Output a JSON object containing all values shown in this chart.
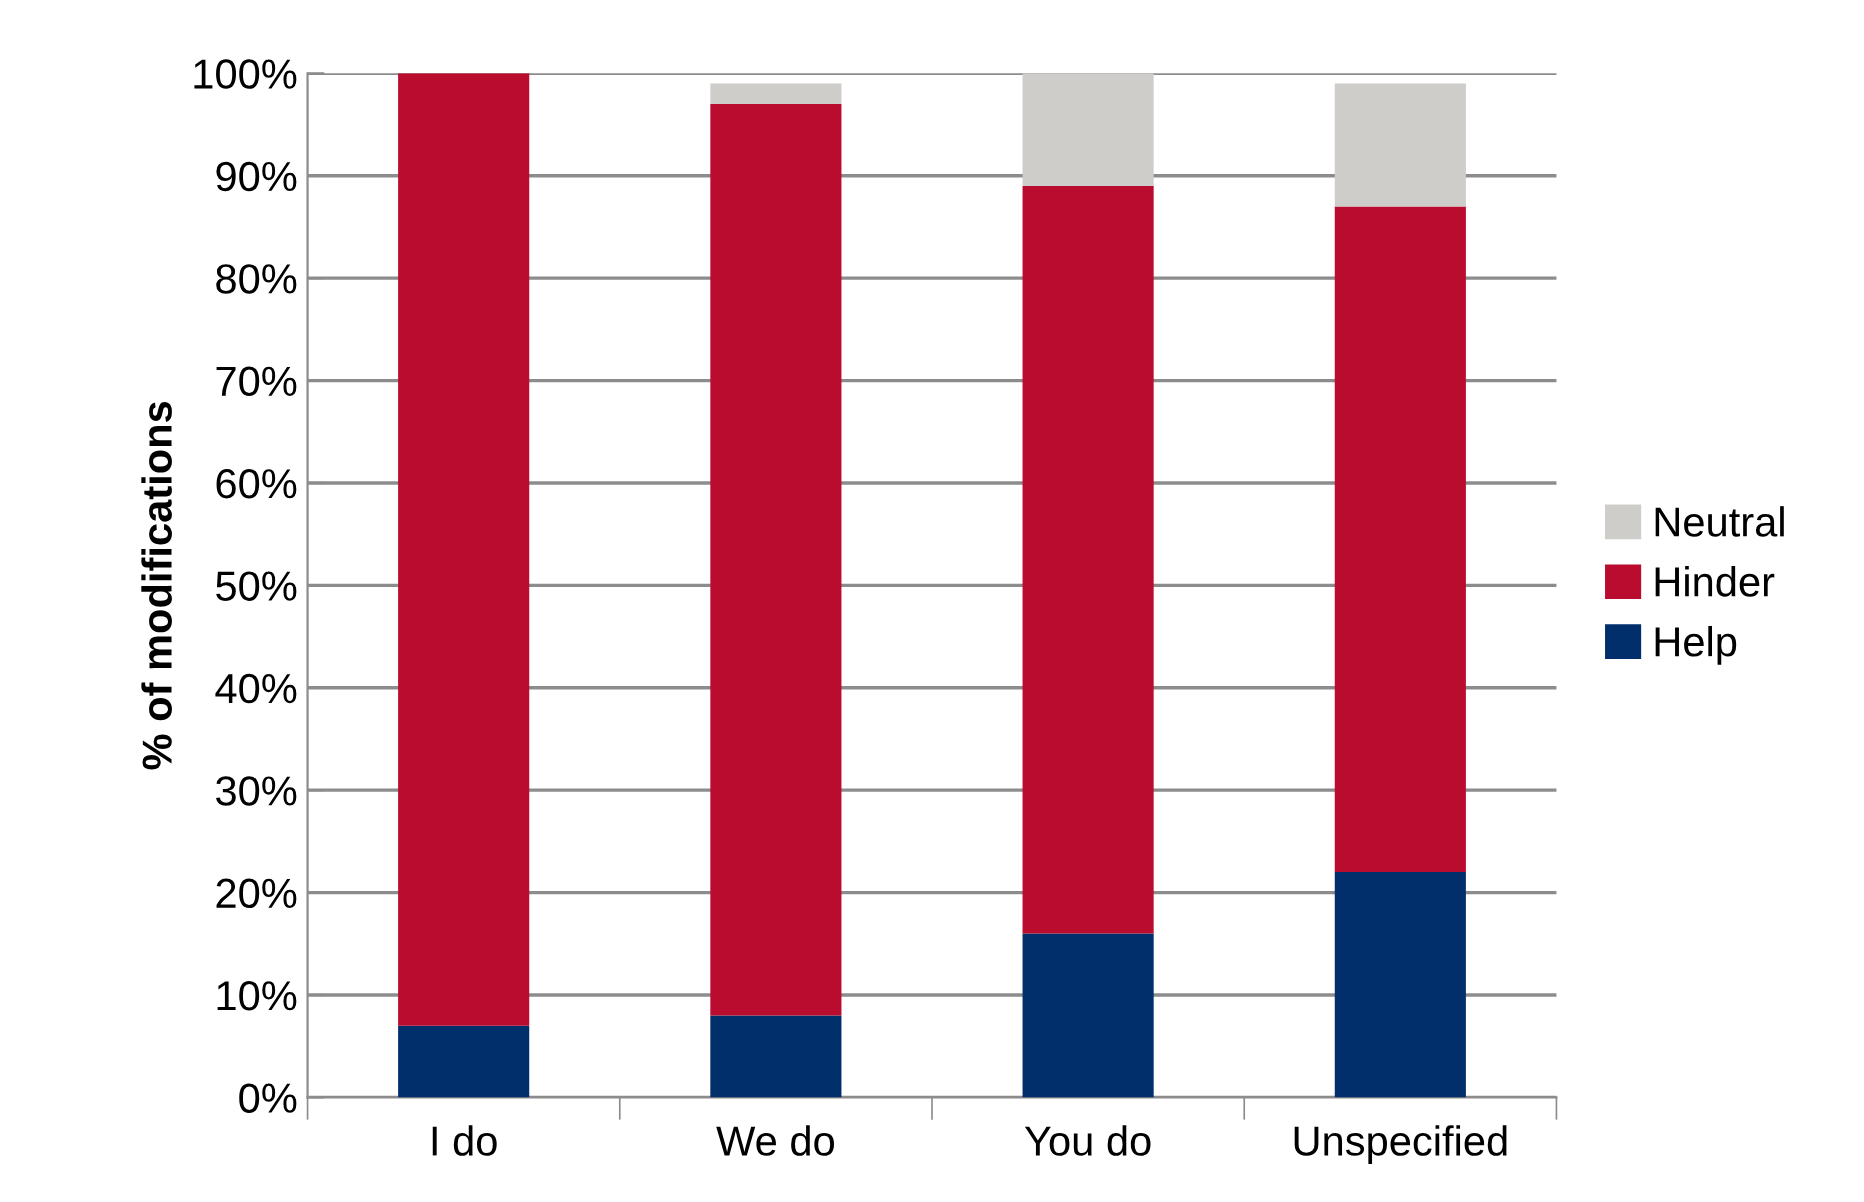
{
  "chart_data": {
    "type": "bar",
    "stacked": true,
    "ylabel": "% of modifications",
    "categories": [
      "I do",
      "We do",
      "You do",
      "Unspecified"
    ],
    "series": [
      {
        "name": "Help",
        "color": "#002f6c",
        "values": [
          7,
          8,
          16,
          22
        ]
      },
      {
        "name": "Hinder",
        "color": "#ba0c2f",
        "values": [
          93,
          89,
          73,
          65
        ]
      },
      {
        "name": "Neutral",
        "color": "#cfcdc9",
        "values": [
          0,
          2,
          11,
          12
        ]
      }
    ],
    "ylim": [
      0,
      100
    ],
    "yticks": [
      {
        "value": 0,
        "label": "0%"
      },
      {
        "value": 10,
        "label": "10%"
      },
      {
        "value": 20,
        "label": "20%"
      },
      {
        "value": 30,
        "label": "30%"
      },
      {
        "value": 40,
        "label": "40%"
      },
      {
        "value": 50,
        "label": "50%"
      },
      {
        "value": 60,
        "label": "60%"
      },
      {
        "value": 70,
        "label": "70%"
      },
      {
        "value": 80,
        "label": "80%"
      },
      {
        "value": 90,
        "label": "90%"
      },
      {
        "value": 100,
        "label": "100%"
      }
    ],
    "grid": "y",
    "legend": "right"
  }
}
